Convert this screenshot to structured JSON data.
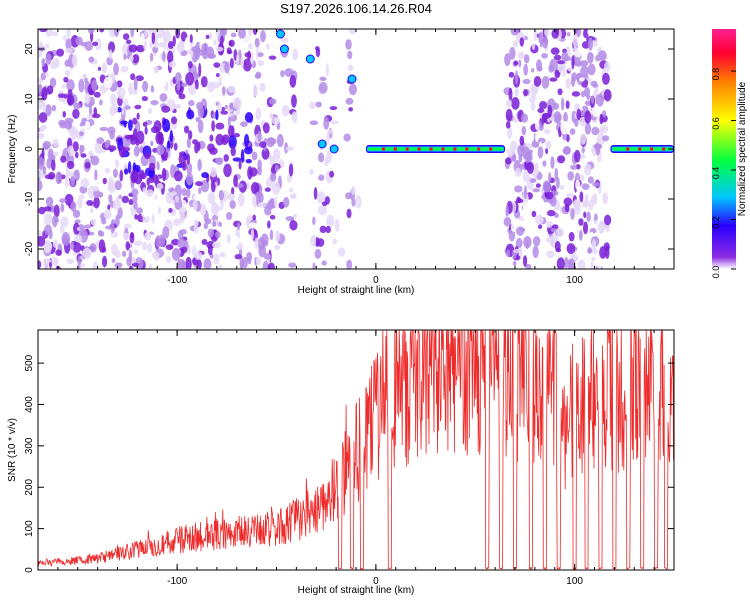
{
  "title": "S197.2026.106.14.26.R04",
  "colors": {
    "background": "#ffffff",
    "axis": "#000000",
    "snr_line": "#ee2a2a",
    "spectrogram_low": "#d9c6f2",
    "spectrogram_high": "#ee2a3a"
  },
  "chart_data": [
    {
      "type": "heatmap",
      "name": "spectrogram",
      "title": "",
      "xlabel": "Height of straight line (km)",
      "ylabel": "Frequency (Hz)",
      "xlim": [
        -170,
        150
      ],
      "ylim": [
        -24,
        24
      ],
      "xticks": [
        -100,
        0,
        100
      ],
      "yticks": [
        -20,
        -10,
        0,
        10,
        20
      ],
      "grid": false,
      "colorbar": {
        "label": "Normalized spectral amplitude",
        "range": [
          0.0,
          0.97
        ],
        "ticks": [
          0.0,
          0.2,
          0.4,
          0.6,
          0.8
        ],
        "colormap": [
          "#ffffff",
          "#7a00d6",
          "#2200ff",
          "#00c8ff",
          "#00ff40",
          "#ffff00",
          "#ff8c00",
          "#ff0040",
          "#ff2090"
        ]
      },
      "features": [
        {
          "description": "broadband noise",
          "x_range": [
            -170,
            -55
          ],
          "freq_range": [
            -24,
            24
          ],
          "amplitude": 0.1
        },
        {
          "description": "narrow carrier",
          "x_range": [
            -5,
            65
          ],
          "freq": 0,
          "amplitude": 0.9
        },
        {
          "description": "broadband noise",
          "x_range": [
            66,
            117
          ],
          "freq_range": [
            -24,
            24
          ],
          "amplitude": 0.1
        },
        {
          "description": "narrow carrier",
          "x_range": [
            118,
            150
          ],
          "freq": 0,
          "amplitude": 0.9
        }
      ]
    },
    {
      "type": "line",
      "name": "snr",
      "title": "",
      "xlabel": "Height of straight line (km)",
      "ylabel": "SNR (10 * v/v)",
      "xlim": [
        -170,
        150
      ],
      "ylim": [
        0,
        580
      ],
      "xticks": [
        -100,
        0,
        100
      ],
      "yticks": [
        0,
        100,
        200,
        300,
        400,
        500
      ],
      "grid": false,
      "series": [
        {
          "name": "SNR",
          "x": [
            -170,
            -160,
            -150,
            -140,
            -130,
            -120,
            -110,
            -100,
            -90,
            -80,
            -70,
            -60,
            -50,
            -40,
            -30,
            -20,
            -10,
            0,
            10,
            20,
            30,
            40,
            50,
            60,
            70,
            80,
            90,
            95,
            100,
            110,
            120,
            130,
            140,
            150
          ],
          "values": [
            15,
            18,
            22,
            28,
            38,
            50,
            62,
            72,
            80,
            85,
            90,
            95,
            100,
            120,
            150,
            200,
            280,
            360,
            420,
            460,
            490,
            500,
            500,
            480,
            470,
            460,
            450,
            300,
            400,
            430,
            420,
            450,
            420,
            380
          ]
        }
      ],
      "dropouts": [
        -18,
        -12,
        -7,
        7,
        56,
        63,
        70,
        78,
        85,
        92,
        100,
        106,
        113,
        120,
        127,
        134,
        141,
        146
      ]
    }
  ]
}
